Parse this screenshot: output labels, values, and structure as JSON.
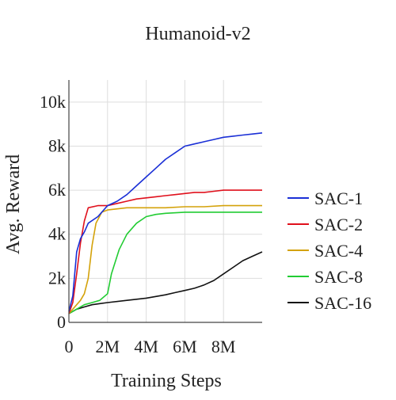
{
  "chart_data": {
    "type": "line",
    "title": "Humanoid-v2",
    "xlabel": "Training Steps",
    "ylabel": "Avg. Reward",
    "xlim": [
      0,
      10000000
    ],
    "ylim": [
      0,
      11000
    ],
    "x_ticks": [
      {
        "value": 0,
        "label": "0"
      },
      {
        "value": 2000000,
        "label": "2M"
      },
      {
        "value": 4000000,
        "label": "4M"
      },
      {
        "value": 6000000,
        "label": "6M"
      },
      {
        "value": 8000000,
        "label": "8M"
      }
    ],
    "y_ticks": [
      {
        "value": 0,
        "label": "0"
      },
      {
        "value": 2000,
        "label": "2k"
      },
      {
        "value": 4000,
        "label": "4k"
      },
      {
        "value": 6000,
        "label": "6k"
      },
      {
        "value": 8000,
        "label": "8k"
      },
      {
        "value": 10000,
        "label": "10k"
      }
    ],
    "grid": true,
    "legend_position": "right",
    "series": [
      {
        "name": "SAC-1",
        "color": "#1a2fd6",
        "x": [
          0,
          200000,
          400000,
          600000,
          800000,
          1000000,
          1500000,
          2000000,
          2500000,
          3000000,
          3500000,
          4000000,
          4500000,
          5000000,
          5500000,
          6000000,
          6500000,
          7000000,
          7500000,
          8000000,
          8500000,
          9000000,
          9500000,
          10000000
        ],
        "y": [
          500,
          1200,
          3200,
          3800,
          4100,
          4500,
          4800,
          5300,
          5500,
          5800,
          6200,
          6600,
          7000,
          7400,
          7700,
          8000,
          8100,
          8200,
          8300,
          8400,
          8450,
          8500,
          8550,
          8600
        ]
      },
      {
        "name": "SAC-2",
        "color": "#e0101c",
        "x": [
          0,
          200000,
          400000,
          600000,
          800000,
          1000000,
          1500000,
          2000000,
          2500000,
          3000000,
          3500000,
          4000000,
          4500000,
          5000000,
          5500000,
          6000000,
          6500000,
          7000000,
          7500000,
          8000000,
          8500000,
          9000000,
          9500000,
          10000000
        ],
        "y": [
          400,
          900,
          2200,
          3600,
          4600,
          5200,
          5300,
          5300,
          5400,
          5500,
          5600,
          5650,
          5700,
          5750,
          5800,
          5850,
          5900,
          5900,
          5950,
          6000,
          6000,
          6000,
          6000,
          6000
        ]
      },
      {
        "name": "SAC-4",
        "color": "#d4a20a",
        "x": [
          0,
          200000,
          400000,
          600000,
          800000,
          1000000,
          1200000,
          1400000,
          1700000,
          2000000,
          2500000,
          3000000,
          3500000,
          4000000,
          4500000,
          5000000,
          6000000,
          7000000,
          8000000,
          9000000,
          10000000
        ],
        "y": [
          400,
          600,
          800,
          1000,
          1300,
          2000,
          3500,
          4500,
          5000,
          5100,
          5150,
          5200,
          5200,
          5200,
          5200,
          5200,
          5250,
          5250,
          5300,
          5300,
          5300
        ]
      },
      {
        "name": "SAC-8",
        "color": "#22cc33",
        "x": [
          0,
          400000,
          800000,
          1200000,
          1600000,
          2000000,
          2200000,
          2600000,
          3000000,
          3500000,
          4000000,
          4500000,
          5000000,
          6000000,
          7000000,
          8000000,
          9000000,
          10000000
        ],
        "y": [
          400,
          600,
          800,
          900,
          1000,
          1300,
          2200,
          3300,
          4000,
          4500,
          4800,
          4900,
          4950,
          5000,
          5000,
          5000,
          5000,
          5000
        ]
      },
      {
        "name": "SAC-16",
        "color": "#111111",
        "x": [
          0,
          400000,
          800000,
          1200000,
          2000000,
          3000000,
          4000000,
          5000000,
          5500000,
          6000000,
          6500000,
          7000000,
          7500000,
          8000000,
          8500000,
          9000000,
          9500000,
          10000000
        ],
        "y": [
          400,
          600,
          700,
          800,
          900,
          1000,
          1100,
          1250,
          1350,
          1450,
          1550,
          1700,
          1900,
          2200,
          2500,
          2800,
          3000,
          3200
        ]
      }
    ]
  }
}
